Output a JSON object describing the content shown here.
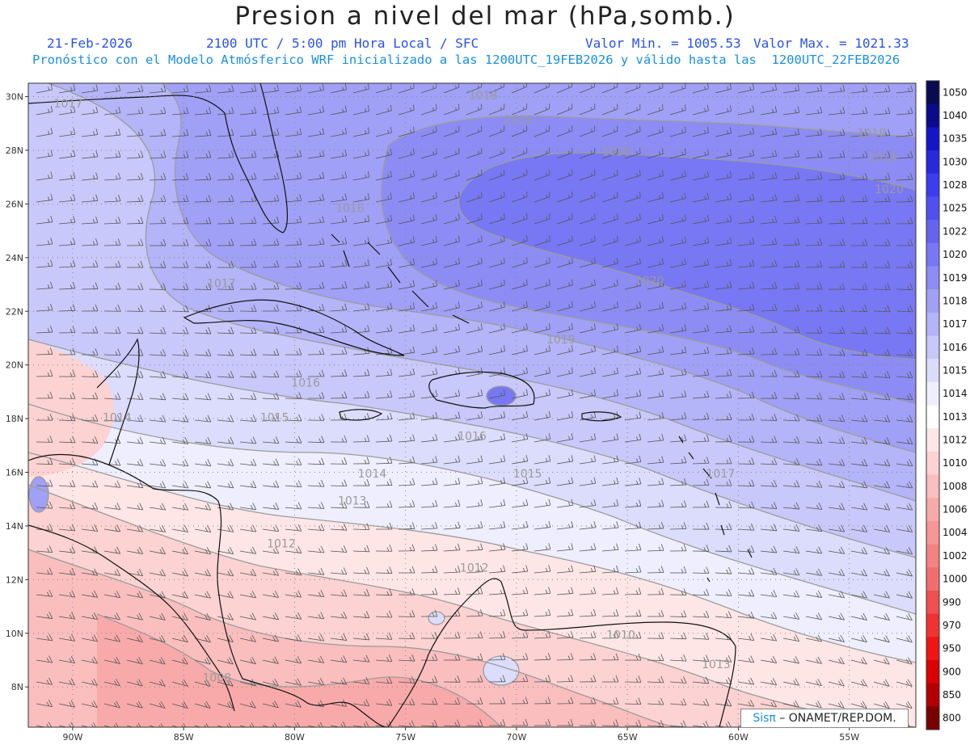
{
  "header": {
    "title": "Presion a nivel del mar (hPa,somb.)",
    "date": "21-Feb-2026",
    "time": "2100 UTC / 5:00 pm Hora Local / SFC",
    "min_label": "Valor Min. = 1005.53",
    "max_label": "Valor Max. = 1021.33",
    "forecast_line": "Pronóstico con el Modelo Atmósferico WRF inicializado a las 1200UTC_19FEB2026 y válido hasta las  1200UTC_22FEB2026"
  },
  "map": {
    "lat_range": [
      6.5,
      30.5
    ],
    "lon_range": [
      -92,
      -52
    ],
    "lat_ticks": [
      {
        "value": 30,
        "label": "30N"
      },
      {
        "value": 28,
        "label": "28N"
      },
      {
        "value": 26,
        "label": "26N"
      },
      {
        "value": 24,
        "label": "24N"
      },
      {
        "value": 22,
        "label": "22N"
      },
      {
        "value": 20,
        "label": "20N"
      },
      {
        "value": 18,
        "label": "18N"
      },
      {
        "value": 16,
        "label": "16N"
      },
      {
        "value": 14,
        "label": "14N"
      },
      {
        "value": 12,
        "label": "12N"
      },
      {
        "value": 10,
        "label": "10N"
      },
      {
        "value": 8,
        "label": "8N"
      }
    ],
    "lon_ticks": [
      {
        "value": -90,
        "label": "90W"
      },
      {
        "value": -85,
        "label": "85W"
      },
      {
        "value": -80,
        "label": "80W"
      },
      {
        "value": -75,
        "label": "75W"
      },
      {
        "value": -70,
        "label": "70W"
      },
      {
        "value": -65,
        "label": "65W"
      },
      {
        "value": -60,
        "label": "60W"
      },
      {
        "value": -55,
        "label": "55W"
      }
    ],
    "contour_labels": [
      {
        "text": "1018",
        "lon": -71.5,
        "lat": 29.9
      },
      {
        "text": "1016",
        "lon": -69.9,
        "lat": 29.0
      },
      {
        "text": "1018",
        "lon": -54.0,
        "lat": 28.5
      },
      {
        "text": "1019",
        "lon": -53.5,
        "lat": 27.6
      },
      {
        "text": "1020",
        "lon": -65.5,
        "lat": 27.8
      },
      {
        "text": "1020",
        "lon": -53.2,
        "lat": 26.4
      },
      {
        "text": "1017",
        "lon": -90.2,
        "lat": 29.6
      },
      {
        "text": "1016",
        "lon": -77.5,
        "lat": 25.7
      },
      {
        "text": "1017",
        "lon": -83.3,
        "lat": 22.9
      },
      {
        "text": "1020",
        "lon": -64.0,
        "lat": 23.0
      },
      {
        "text": "1019",
        "lon": -68.0,
        "lat": 20.8
      },
      {
        "text": "1016",
        "lon": -79.5,
        "lat": 19.2
      },
      {
        "text": "1014",
        "lon": -88.0,
        "lat": 17.9
      },
      {
        "text": "1015",
        "lon": -80.9,
        "lat": 17.9
      },
      {
        "text": "1016",
        "lon": -72.0,
        "lat": 17.2
      },
      {
        "text": "1015",
        "lon": -69.5,
        "lat": 15.8
      },
      {
        "text": "1014",
        "lon": -76.5,
        "lat": 15.8
      },
      {
        "text": "1017",
        "lon": -60.8,
        "lat": 15.8
      },
      {
        "text": "1013",
        "lon": -77.4,
        "lat": 14.8
      },
      {
        "text": "1012",
        "lon": -80.6,
        "lat": 13.2
      },
      {
        "text": "1012",
        "lon": -71.9,
        "lat": 12.3
      },
      {
        "text": "1010",
        "lon": -65.3,
        "lat": 9.8
      },
      {
        "text": "1013",
        "lon": -61.0,
        "lat": 8.7
      },
      {
        "text": "1008",
        "lon": -83.5,
        "lat": 8.2
      }
    ]
  },
  "colorbar": {
    "labels": [
      "1050",
      "1040",
      "1035",
      "1030",
      "1028",
      "1025",
      "1022",
      "1020",
      "1019",
      "1018",
      "1017",
      "1016",
      "1015",
      "1014",
      "1013",
      "1012",
      "1010",
      "1008",
      "1006",
      "1004",
      "1002",
      "1000",
      "990",
      "970",
      "950",
      "900",
      "850",
      "800"
    ],
    "colors": [
      "#0a0a50",
      "#0a0a8c",
      "#1414c8",
      "#2828dc",
      "#3c3cf0",
      "#5050f0",
      "#6464f0",
      "#7878f4",
      "#8c8cf4",
      "#a0a0f6",
      "#b4b4f8",
      "#c8c8fa",
      "#dcdcfc",
      "#eeeefe",
      "#ffffff",
      "#fee6e6",
      "#fcd2d2",
      "#fabebe",
      "#f8aaaa",
      "#f69696",
      "#f48282",
      "#f26e6e",
      "#f05050",
      "#f03232",
      "#f01414",
      "#dc0000",
      "#b40000",
      "#7a0000"
    ]
  },
  "credit": {
    "sis": "Sisπ",
    "text": "– ONAMET/REP.DOM."
  }
}
